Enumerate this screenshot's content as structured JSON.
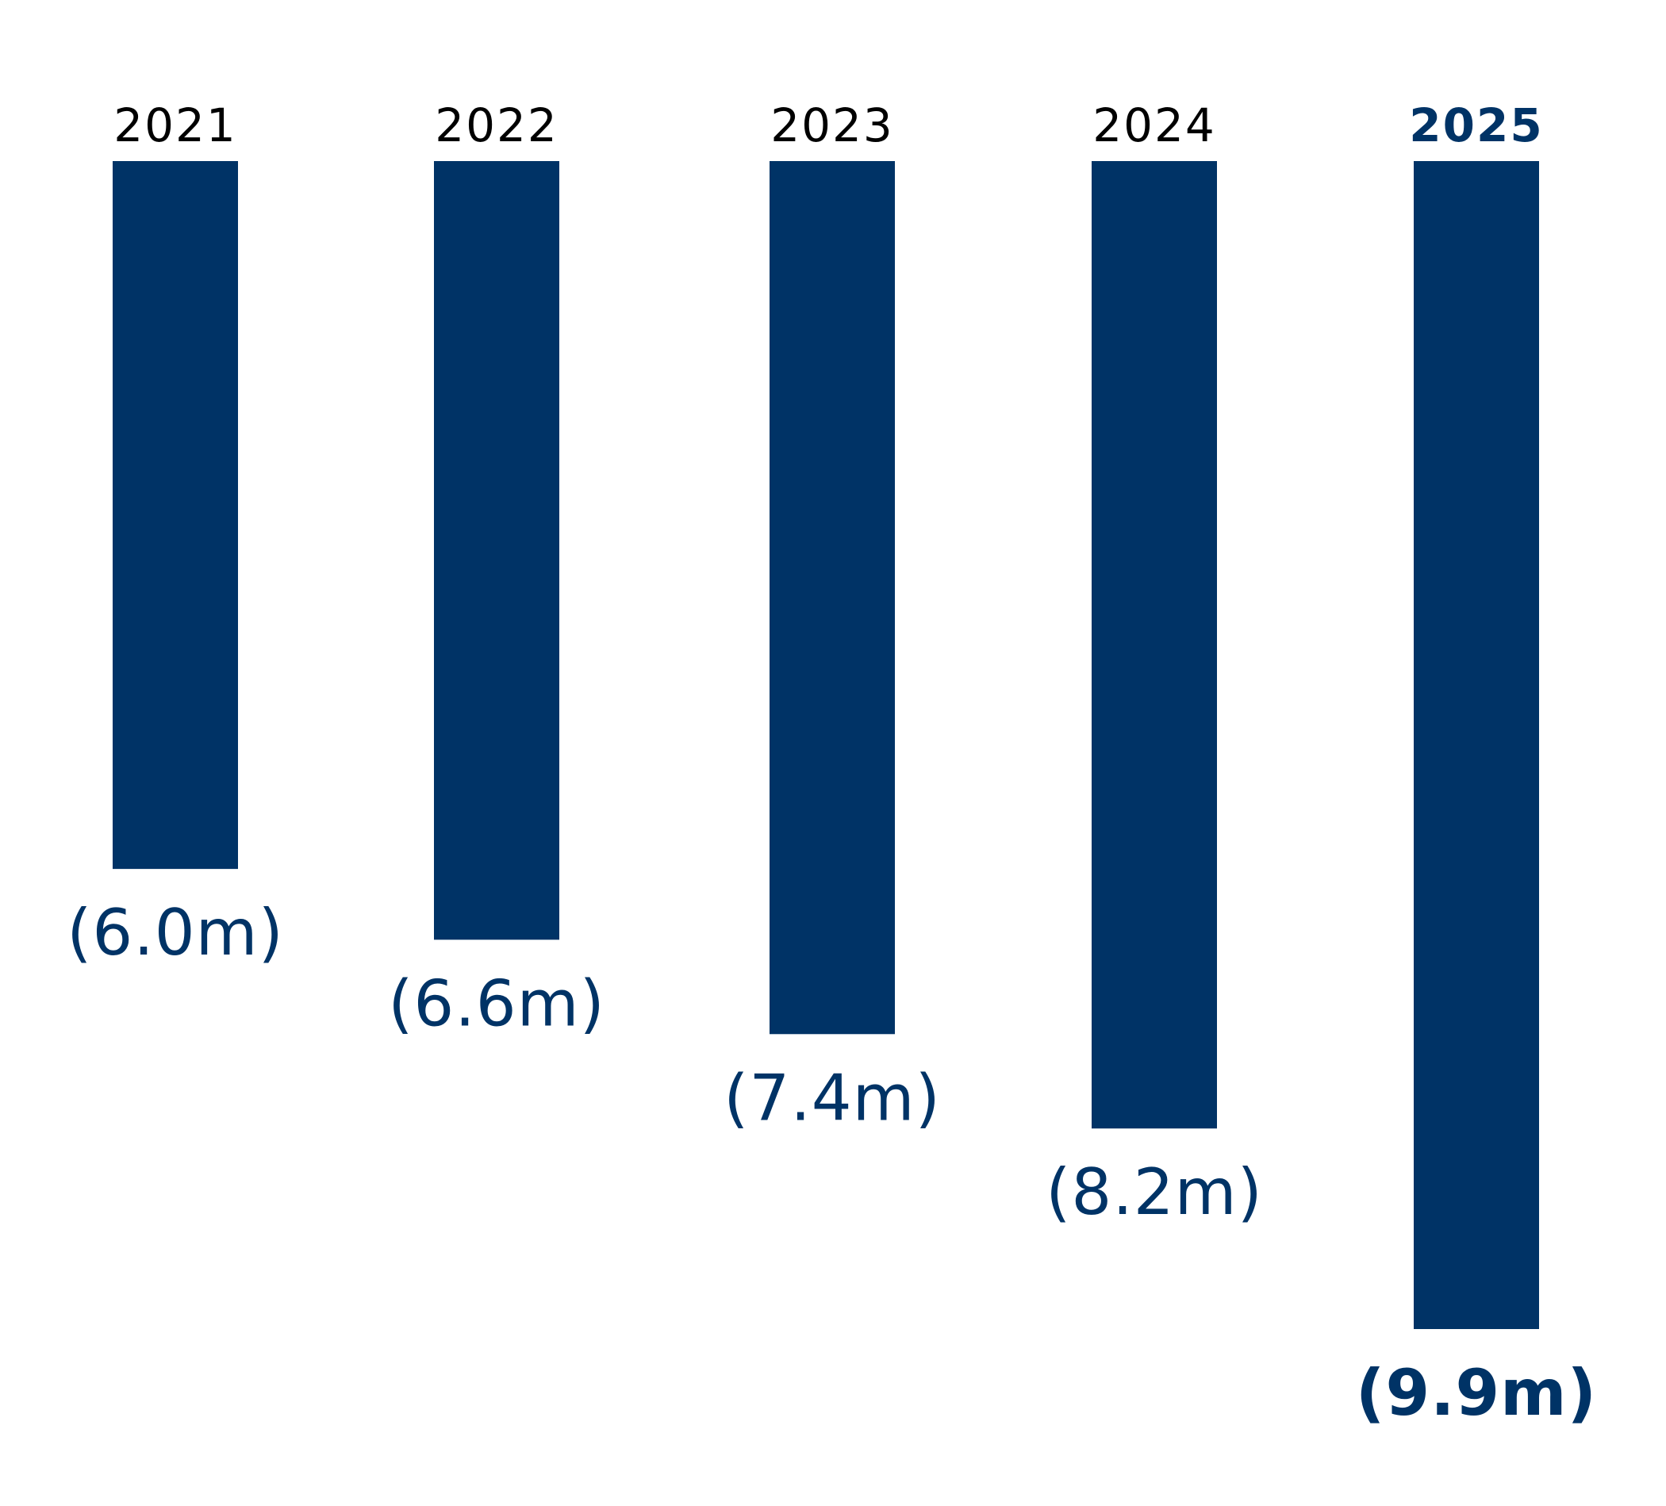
{
  "chart_data": {
    "type": "bar",
    "orientation": "downward",
    "categories": [
      "2021",
      "2022",
      "2023",
      "2024",
      "2025"
    ],
    "values": [
      -6.0,
      -6.6,
      -7.4,
      -8.2,
      -9.9
    ],
    "value_labels": [
      "(6.0m)",
      "(6.6m)",
      "(7.4m)",
      "(8.2m)",
      "(9.9m)"
    ],
    "highlight_category": "2025",
    "title": "",
    "xlabel": "",
    "ylabel": "",
    "ylim": [
      -9.9,
      0
    ],
    "grid": false,
    "legend": "none",
    "colors": {
      "bar": "#003366",
      "value_text": "#003366",
      "year_text": "#000000",
      "highlight_year_text": "#003366"
    }
  }
}
